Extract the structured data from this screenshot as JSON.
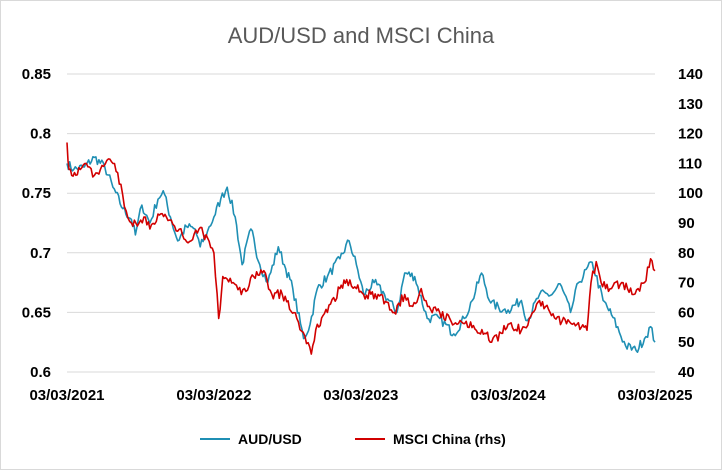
{
  "chart_data": {
    "type": "line",
    "title": "AUD/USD and MSCI China",
    "x_ticks": [
      "03/03/2021",
      "03/03/2022",
      "03/03/2023",
      "03/03/2024",
      "03/03/2025"
    ],
    "y_left": {
      "ylim": [
        0.6,
        0.85
      ],
      "ticks": [
        "0.6",
        "0.65",
        "0.7",
        "0.75",
        "0.8",
        "0.85"
      ]
    },
    "y_right": {
      "ylim": [
        40,
        140
      ],
      "ticks": [
        "40",
        "50",
        "60",
        "70",
        "80",
        "90",
        "100",
        "110",
        "120",
        "130",
        "140"
      ]
    },
    "grid": true,
    "legend_position": "bottom",
    "series": [
      {
        "name": "AUD/USD",
        "axis": "left",
        "color": "#1f8fb4",
        "points": [
          [
            "2021-03-03",
            0.775
          ],
          [
            "2021-03-20",
            0.77
          ],
          [
            "2021-04-15",
            0.772
          ],
          [
            "2021-05-10",
            0.78
          ],
          [
            "2021-06-05",
            0.772
          ],
          [
            "2021-06-25",
            0.755
          ],
          [
            "2021-07-20",
            0.737
          ],
          [
            "2021-08-10",
            0.728
          ],
          [
            "2021-08-20",
            0.715
          ],
          [
            "2021-09-05",
            0.74
          ],
          [
            "2021-09-25",
            0.725
          ],
          [
            "2021-10-15",
            0.745
          ],
          [
            "2021-10-28",
            0.752
          ],
          [
            "2021-11-15",
            0.73
          ],
          [
            "2021-12-03",
            0.71
          ],
          [
            "2021-12-25",
            0.722
          ],
          [
            "2022-01-15",
            0.72
          ],
          [
            "2022-01-28",
            0.705
          ],
          [
            "2022-02-15",
            0.718
          ],
          [
            "2022-03-03",
            0.73
          ],
          [
            "2022-03-20",
            0.745
          ],
          [
            "2022-04-05",
            0.755
          ],
          [
            "2022-04-25",
            0.73
          ],
          [
            "2022-05-12",
            0.69
          ],
          [
            "2022-06-03",
            0.72
          ],
          [
            "2022-06-25",
            0.69
          ],
          [
            "2022-07-15",
            0.675
          ],
          [
            "2022-08-10",
            0.705
          ],
          [
            "2022-08-25",
            0.69
          ],
          [
            "2022-09-15",
            0.67
          ],
          [
            "2022-10-12",
            0.628
          ],
          [
            "2022-10-28",
            0.64
          ],
          [
            "2022-11-15",
            0.67
          ],
          [
            "2022-12-10",
            0.68
          ],
          [
            "2023-01-10",
            0.695
          ],
          [
            "2023-02-02",
            0.71
          ],
          [
            "2023-02-20",
            0.69
          ],
          [
            "2023-03-10",
            0.665
          ],
          [
            "2023-04-05",
            0.675
          ],
          [
            "2023-05-01",
            0.665
          ],
          [
            "2023-06-01",
            0.65
          ],
          [
            "2023-06-20",
            0.683
          ],
          [
            "2023-07-15",
            0.68
          ],
          [
            "2023-08-15",
            0.645
          ],
          [
            "2023-09-15",
            0.645
          ],
          [
            "2023-10-20",
            0.632
          ],
          [
            "2023-11-15",
            0.645
          ],
          [
            "2023-12-05",
            0.66
          ],
          [
            "2023-12-28",
            0.683
          ],
          [
            "2024-01-20",
            0.658
          ],
          [
            "2024-02-20",
            0.652
          ],
          [
            "2024-03-03",
            0.652
          ],
          [
            "2024-04-05",
            0.66
          ],
          [
            "2024-04-20",
            0.643
          ],
          [
            "2024-05-20",
            0.665
          ],
          [
            "2024-06-20",
            0.665
          ],
          [
            "2024-07-10",
            0.674
          ],
          [
            "2024-08-05",
            0.65
          ],
          [
            "2024-08-25",
            0.675
          ],
          [
            "2024-09-28",
            0.692
          ],
          [
            "2024-10-25",
            0.66
          ],
          [
            "2024-11-15",
            0.648
          ],
          [
            "2024-12-20",
            0.622
          ],
          [
            "2025-01-15",
            0.618
          ],
          [
            "2025-02-05",
            0.628
          ],
          [
            "2025-02-20",
            0.638
          ],
          [
            "2025-03-03",
            0.625
          ]
        ]
      },
      {
        "name": "MSCI China (rhs)",
        "axis": "right",
        "color": "#d10000",
        "points": [
          [
            "2021-03-03",
            117
          ],
          [
            "2021-03-08",
            108
          ],
          [
            "2021-03-25",
            106
          ],
          [
            "2021-04-20",
            110
          ],
          [
            "2021-05-10",
            106
          ],
          [
            "2021-05-25",
            108
          ],
          [
            "2021-06-10",
            111
          ],
          [
            "2021-06-25",
            110
          ],
          [
            "2021-07-15",
            103
          ],
          [
            "2021-07-28",
            94
          ],
          [
            "2021-08-10",
            90
          ],
          [
            "2021-08-25",
            89
          ],
          [
            "2021-09-10",
            92
          ],
          [
            "2021-09-25",
            88
          ],
          [
            "2021-10-15",
            93
          ],
          [
            "2021-11-05",
            92
          ],
          [
            "2021-11-25",
            89
          ],
          [
            "2021-12-15",
            86
          ],
          [
            "2022-01-05",
            84
          ],
          [
            "2022-01-25",
            88
          ],
          [
            "2022-02-15",
            85
          ],
          [
            "2022-03-03",
            80
          ],
          [
            "2022-03-15",
            58
          ],
          [
            "2022-03-25",
            72
          ],
          [
            "2022-04-20",
            70
          ],
          [
            "2022-05-10",
            66
          ],
          [
            "2022-06-10",
            72
          ],
          [
            "2022-07-05",
            74
          ],
          [
            "2022-07-25",
            66
          ],
          [
            "2022-08-20",
            66
          ],
          [
            "2022-09-25",
            58
          ],
          [
            "2022-10-15",
            52
          ],
          [
            "2022-10-31",
            46
          ],
          [
            "2022-11-15",
            56
          ],
          [
            "2022-12-10",
            60
          ],
          [
            "2023-01-10",
            68
          ],
          [
            "2023-01-27",
            71
          ],
          [
            "2023-02-20",
            68
          ],
          [
            "2023-03-10",
            66
          ],
          [
            "2023-04-15",
            66
          ],
          [
            "2023-05-25",
            60
          ],
          [
            "2023-06-20",
            66
          ],
          [
            "2023-07-10",
            62
          ],
          [
            "2023-07-31",
            68
          ],
          [
            "2023-08-20",
            62
          ],
          [
            "2023-09-15",
            60
          ],
          [
            "2023-10-10",
            58
          ],
          [
            "2023-10-28",
            56
          ],
          [
            "2023-11-20",
            57
          ],
          [
            "2023-12-15",
            54
          ],
          [
            "2024-01-05",
            53
          ],
          [
            "2024-01-22",
            50
          ],
          [
            "2024-02-15",
            53
          ],
          [
            "2024-03-03",
            56
          ],
          [
            "2024-04-05",
            54
          ],
          [
            "2024-04-25",
            58
          ],
          [
            "2024-05-20",
            64
          ],
          [
            "2024-06-15",
            60
          ],
          [
            "2024-07-15",
            57
          ],
          [
            "2024-08-10",
            56
          ],
          [
            "2024-09-01",
            55
          ],
          [
            "2024-09-15",
            54
          ],
          [
            "2024-09-25",
            70
          ],
          [
            "2024-10-08",
            77
          ],
          [
            "2024-10-20",
            70
          ],
          [
            "2024-11-15",
            68
          ],
          [
            "2024-12-10",
            70
          ],
          [
            "2025-01-05",
            66
          ],
          [
            "2025-01-20",
            68
          ],
          [
            "2025-02-05",
            70
          ],
          [
            "2025-02-20",
            78
          ],
          [
            "2025-03-03",
            74
          ]
        ]
      }
    ]
  }
}
